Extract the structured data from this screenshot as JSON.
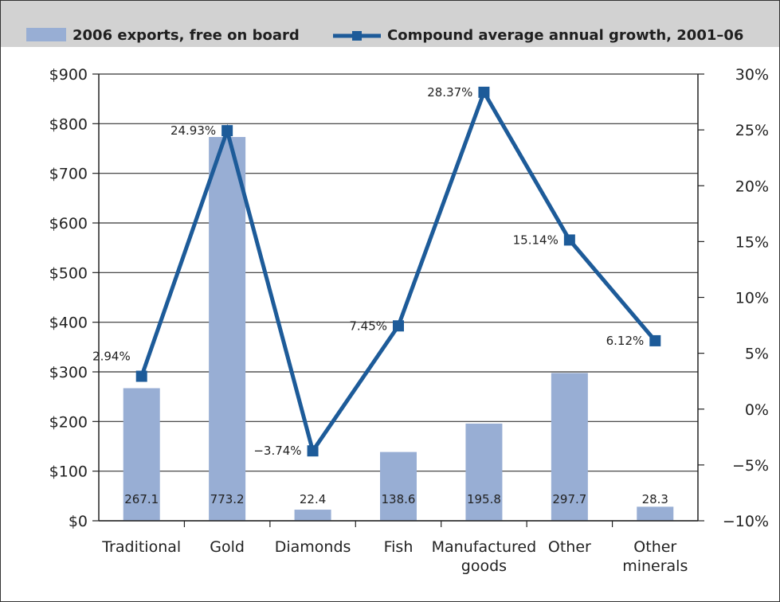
{
  "chart_data": {
    "type": "bar",
    "categories": [
      [
        "Traditional"
      ],
      [
        "Gold"
      ],
      [
        "Diamonds"
      ],
      [
        "Fish"
      ],
      [
        "Manufactured",
        "goods"
      ],
      [
        "Other"
      ],
      [
        "Other",
        "minerals"
      ]
    ],
    "series": [
      {
        "name": "2006 exports, free on board",
        "type": "bar",
        "axis": "left",
        "values": [
          267.1,
          773.2,
          22.4,
          138.6,
          195.8,
          297.7,
          28.3
        ],
        "labels": [
          "267.1",
          "773.2",
          "22.4",
          "138.6",
          "195.8",
          "297.7",
          "28.3"
        ],
        "color": "#98aed4"
      },
      {
        "name": "Compound average annual growth, 2001–06",
        "type": "line",
        "axis": "right",
        "values": [
          2.94,
          24.93,
          -3.74,
          7.45,
          28.37,
          15.14,
          6.12
        ],
        "labels": [
          "2.94%",
          "24.93%",
          "−3.74%",
          "7.45%",
          "28.37%",
          "15.14%",
          "6.12%"
        ],
        "color": "#1d5b99"
      }
    ],
    "y_left": {
      "ylim": [
        0,
        900
      ],
      "ticks": [
        0,
        100,
        200,
        300,
        400,
        500,
        600,
        700,
        800,
        900
      ],
      "tick_labels": [
        "$0",
        "$100",
        "$200",
        "$300",
        "$400",
        "$500",
        "$600",
        "$700",
        "$800",
        "$900"
      ]
    },
    "y_right": {
      "ylim": [
        -10,
        30
      ],
      "ticks": [
        -10,
        -5,
        0,
        5,
        10,
        15,
        20,
        25,
        30
      ],
      "tick_labels": [
        "−10%",
        "−5%",
        "0%",
        "5%",
        "10%",
        "15%",
        "20%",
        "25%",
        "30%"
      ]
    },
    "grid": true,
    "legend": "top",
    "legend_background": "#d2d2d2",
    "title": "",
    "xlabel": "",
    "ylabel": ""
  }
}
